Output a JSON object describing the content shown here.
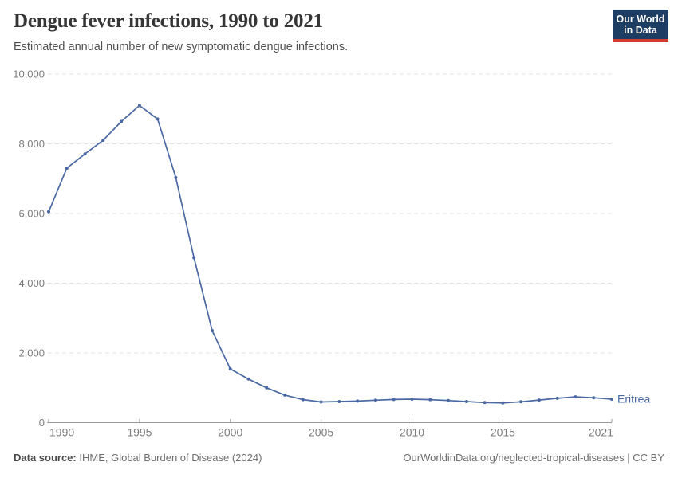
{
  "header": {
    "title": "Dengue fever infections, 1990 to 2021",
    "subtitle": "Estimated annual number of new symptomatic dengue infections.",
    "logo": {
      "line1": "Our World",
      "line2": "in Data"
    }
  },
  "footer": {
    "source_label": "Data source:",
    "source_text": " IHME, Global Burden of Disease (2024)",
    "attribution": "OurWorldinData.org/neglected-tropical-diseases | CC BY"
  },
  "colors": {
    "line": "#4a69a3",
    "grid": "#e3e3e3",
    "axis": "#9a9a9a",
    "tick_label": "#7d7d7d",
    "title": "#363636",
    "subtitle": "#4f4f4f",
    "footer": "#6e6e6e",
    "logo_bg": "#1d3d63",
    "logo_stripe": "#d6392e"
  },
  "chart_data": {
    "type": "line",
    "title": "Dengue fever infections, 1990 to 2021",
    "subtitle": "Estimated annual number of new symptomatic dengue infections.",
    "xlabel": "",
    "ylabel": "",
    "xlim": [
      1990,
      2021
    ],
    "ylim": [
      0,
      10000
    ],
    "xticks": [
      1990,
      1995,
      2000,
      2005,
      2010,
      2015,
      2021
    ],
    "yticks": [
      0,
      2000,
      4000,
      6000,
      8000,
      10000
    ],
    "grid": "horizontal-dashed",
    "legend": "end-of-line-label",
    "series": [
      {
        "name": "Eritrea",
        "x": [
          1990,
          1991,
          1992,
          1993,
          1994,
          1995,
          1996,
          1997,
          1998,
          1999,
          2000,
          2001,
          2002,
          2003,
          2004,
          2005,
          2006,
          2007,
          2008,
          2009,
          2010,
          2011,
          2012,
          2013,
          2014,
          2015,
          2016,
          2017,
          2018,
          2019,
          2020,
          2021
        ],
        "values": [
          6050,
          7300,
          7710,
          8100,
          8640,
          9100,
          8710,
          7030,
          4730,
          2640,
          1540,
          1250,
          1000,
          790,
          660,
          595,
          605,
          620,
          645,
          665,
          675,
          660,
          635,
          605,
          575,
          565,
          600,
          650,
          700,
          740,
          715,
          675
        ]
      }
    ]
  }
}
